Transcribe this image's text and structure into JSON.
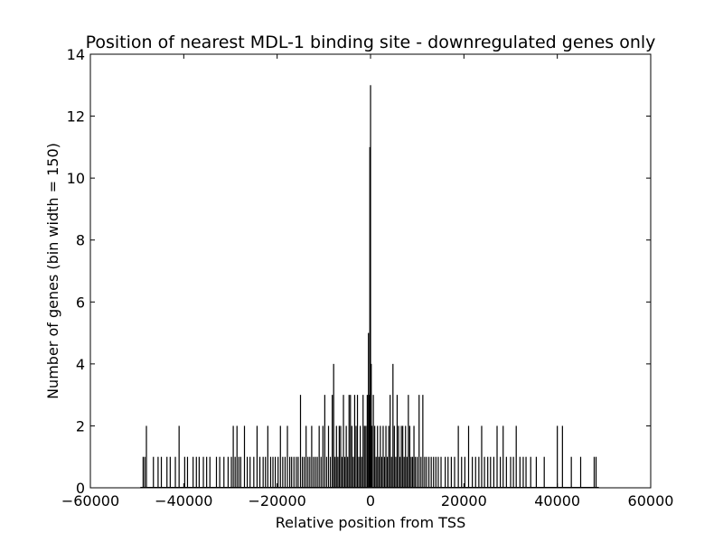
{
  "chart_data": {
    "type": "bar",
    "title": "Position of nearest MDL-1 binding site - downregulated genes only",
    "xlabel": "Relative position from TSS",
    "ylabel": "Number of genes (bin width = 150)",
    "xlim": [
      -60000,
      60000
    ],
    "ylim": [
      0,
      14
    ],
    "xticks": [
      -60000,
      -40000,
      -20000,
      0,
      20000,
      40000,
      60000
    ],
    "xtick_labels": [
      "−60000",
      "−40000",
      "−20000",
      "0",
      "20000",
      "40000",
      "60000"
    ],
    "yticks": [
      0,
      2,
      4,
      6,
      8,
      10,
      12,
      14
    ],
    "ytick_labels": [
      "0",
      "2",
      "4",
      "6",
      "8",
      "10",
      "12",
      "14"
    ],
    "bin_width": 150,
    "bar_color": "#000000",
    "grid": false,
    "legend": "none",
    "bins": [
      {
        "x": -48700,
        "y": 1
      },
      {
        "x": -48350,
        "y": 1
      },
      {
        "x": -48000,
        "y": 2
      },
      {
        "x": -46500,
        "y": 1
      },
      {
        "x": -45500,
        "y": 1
      },
      {
        "x": -44800,
        "y": 1
      },
      {
        "x": -43600,
        "y": 1
      },
      {
        "x": -42900,
        "y": 1
      },
      {
        "x": -41800,
        "y": 1
      },
      {
        "x": -41000,
        "y": 2
      },
      {
        "x": -39800,
        "y": 1
      },
      {
        "x": -39200,
        "y": 1
      },
      {
        "x": -38000,
        "y": 1
      },
      {
        "x": -37300,
        "y": 1
      },
      {
        "x": -36700,
        "y": 1
      },
      {
        "x": -35800,
        "y": 1
      },
      {
        "x": -35100,
        "y": 1
      },
      {
        "x": -34400,
        "y": 1
      },
      {
        "x": -33000,
        "y": 1
      },
      {
        "x": -32300,
        "y": 1
      },
      {
        "x": -31400,
        "y": 1
      },
      {
        "x": -30500,
        "y": 1
      },
      {
        "x": -29800,
        "y": 1
      },
      {
        "x": -29400,
        "y": 2
      },
      {
        "x": -29000,
        "y": 1
      },
      {
        "x": -28600,
        "y": 2
      },
      {
        "x": -28200,
        "y": 1
      },
      {
        "x": -27800,
        "y": 1
      },
      {
        "x": -27000,
        "y": 2
      },
      {
        "x": -26400,
        "y": 1
      },
      {
        "x": -25800,
        "y": 1
      },
      {
        "x": -25000,
        "y": 1
      },
      {
        "x": -24300,
        "y": 2
      },
      {
        "x": -23700,
        "y": 1
      },
      {
        "x": -23000,
        "y": 1
      },
      {
        "x": -22500,
        "y": 1
      },
      {
        "x": -22000,
        "y": 2
      },
      {
        "x": -21400,
        "y": 1
      },
      {
        "x": -20900,
        "y": 1
      },
      {
        "x": -20400,
        "y": 1
      },
      {
        "x": -19800,
        "y": 1
      },
      {
        "x": -19300,
        "y": 2
      },
      {
        "x": -18800,
        "y": 1
      },
      {
        "x": -18300,
        "y": 1
      },
      {
        "x": -17800,
        "y": 2
      },
      {
        "x": -17300,
        "y": 1
      },
      {
        "x": -16900,
        "y": 1
      },
      {
        "x": -16400,
        "y": 1
      },
      {
        "x": -15900,
        "y": 1
      },
      {
        "x": -15500,
        "y": 1
      },
      {
        "x": -15000,
        "y": 3
      },
      {
        "x": -14600,
        "y": 1
      },
      {
        "x": -14200,
        "y": 1
      },
      {
        "x": -13800,
        "y": 2
      },
      {
        "x": -13400,
        "y": 1
      },
      {
        "x": -13000,
        "y": 1
      },
      {
        "x": -12600,
        "y": 2
      },
      {
        "x": -12200,
        "y": 1
      },
      {
        "x": -11800,
        "y": 1
      },
      {
        "x": -11400,
        "y": 1
      },
      {
        "x": -11000,
        "y": 2
      },
      {
        "x": -10600,
        "y": 1
      },
      {
        "x": -10200,
        "y": 2
      },
      {
        "x": -9800,
        "y": 3
      },
      {
        "x": -9400,
        "y": 1
      },
      {
        "x": -9000,
        "y": 2
      },
      {
        "x": -8600,
        "y": 1
      },
      {
        "x": -8200,
        "y": 3
      },
      {
        "x": -7900,
        "y": 4
      },
      {
        "x": -7600,
        "y": 1
      },
      {
        "x": -7300,
        "y": 2
      },
      {
        "x": -7000,
        "y": 1
      },
      {
        "x": -6700,
        "y": 2
      },
      {
        "x": -6400,
        "y": 2
      },
      {
        "x": -6100,
        "y": 1
      },
      {
        "x": -5800,
        "y": 3
      },
      {
        "x": -5500,
        "y": 1
      },
      {
        "x": -5200,
        "y": 2
      },
      {
        "x": -4900,
        "y": 1
      },
      {
        "x": -4600,
        "y": 3
      },
      {
        "x": -4300,
        "y": 3
      },
      {
        "x": -4000,
        "y": 2
      },
      {
        "x": -3700,
        "y": 1
      },
      {
        "x": -3400,
        "y": 3
      },
      {
        "x": -3100,
        "y": 2
      },
      {
        "x": -2800,
        "y": 3
      },
      {
        "x": -2500,
        "y": 1
      },
      {
        "x": -2200,
        "y": 2
      },
      {
        "x": -1900,
        "y": 1
      },
      {
        "x": -1600,
        "y": 3
      },
      {
        "x": -1300,
        "y": 2
      },
      {
        "x": -1000,
        "y": 2
      },
      {
        "x": -700,
        "y": 3
      },
      {
        "x": -450,
        "y": 5
      },
      {
        "x": -300,
        "y": 3
      },
      {
        "x": -150,
        "y": 11
      },
      {
        "x": 0,
        "y": 13
      },
      {
        "x": 150,
        "y": 4
      },
      {
        "x": 300,
        "y": 2
      },
      {
        "x": 600,
        "y": 3
      },
      {
        "x": 900,
        "y": 2
      },
      {
        "x": 1200,
        "y": 1
      },
      {
        "x": 1500,
        "y": 2
      },
      {
        "x": 1800,
        "y": 1
      },
      {
        "x": 2100,
        "y": 2
      },
      {
        "x": 2400,
        "y": 1
      },
      {
        "x": 2700,
        "y": 2
      },
      {
        "x": 3000,
        "y": 1
      },
      {
        "x": 3300,
        "y": 2
      },
      {
        "x": 3600,
        "y": 1
      },
      {
        "x": 3900,
        "y": 2
      },
      {
        "x": 4200,
        "y": 3
      },
      {
        "x": 4500,
        "y": 1
      },
      {
        "x": 4800,
        "y": 4
      },
      {
        "x": 5100,
        "y": 2
      },
      {
        "x": 5400,
        "y": 1
      },
      {
        "x": 5700,
        "y": 3
      },
      {
        "x": 6000,
        "y": 2
      },
      {
        "x": 6300,
        "y": 1
      },
      {
        "x": 6600,
        "y": 2
      },
      {
        "x": 6900,
        "y": 2
      },
      {
        "x": 7200,
        "y": 1
      },
      {
        "x": 7500,
        "y": 2
      },
      {
        "x": 7800,
        "y": 1
      },
      {
        "x": 8100,
        "y": 3
      },
      {
        "x": 8400,
        "y": 2
      },
      {
        "x": 8700,
        "y": 1
      },
      {
        "x": 9000,
        "y": 1
      },
      {
        "x": 9300,
        "y": 2
      },
      {
        "x": 9600,
        "y": 1
      },
      {
        "x": 10000,
        "y": 1
      },
      {
        "x": 10400,
        "y": 3
      },
      {
        "x": 10800,
        "y": 1
      },
      {
        "x": 11200,
        "y": 3
      },
      {
        "x": 11600,
        "y": 1
      },
      {
        "x": 12000,
        "y": 1
      },
      {
        "x": 12500,
        "y": 1
      },
      {
        "x": 13000,
        "y": 1
      },
      {
        "x": 13500,
        "y": 1
      },
      {
        "x": 14000,
        "y": 1
      },
      {
        "x": 14500,
        "y": 1
      },
      {
        "x": 15100,
        "y": 1
      },
      {
        "x": 16000,
        "y": 1
      },
      {
        "x": 16600,
        "y": 1
      },
      {
        "x": 17300,
        "y": 1
      },
      {
        "x": 18000,
        "y": 1
      },
      {
        "x": 18800,
        "y": 2
      },
      {
        "x": 19500,
        "y": 1
      },
      {
        "x": 20200,
        "y": 1
      },
      {
        "x": 21000,
        "y": 2
      },
      {
        "x": 21800,
        "y": 1
      },
      {
        "x": 22500,
        "y": 1
      },
      {
        "x": 23200,
        "y": 1
      },
      {
        "x": 23800,
        "y": 2
      },
      {
        "x": 24400,
        "y": 1
      },
      {
        "x": 25100,
        "y": 1
      },
      {
        "x": 25700,
        "y": 1
      },
      {
        "x": 26400,
        "y": 1
      },
      {
        "x": 27100,
        "y": 2
      },
      {
        "x": 27800,
        "y": 1
      },
      {
        "x": 28400,
        "y": 2
      },
      {
        "x": 29100,
        "y": 1
      },
      {
        "x": 30000,
        "y": 1
      },
      {
        "x": 30600,
        "y": 1
      },
      {
        "x": 31200,
        "y": 2
      },
      {
        "x": 32000,
        "y": 1
      },
      {
        "x": 32700,
        "y": 1
      },
      {
        "x": 33300,
        "y": 1
      },
      {
        "x": 34300,
        "y": 1
      },
      {
        "x": 35500,
        "y": 1
      },
      {
        "x": 37200,
        "y": 1
      },
      {
        "x": 40000,
        "y": 2
      },
      {
        "x": 41100,
        "y": 2
      },
      {
        "x": 43000,
        "y": 1
      },
      {
        "x": 45000,
        "y": 1
      },
      {
        "x": 47900,
        "y": 1
      },
      {
        "x": 48300,
        "y": 1
      }
    ]
  }
}
